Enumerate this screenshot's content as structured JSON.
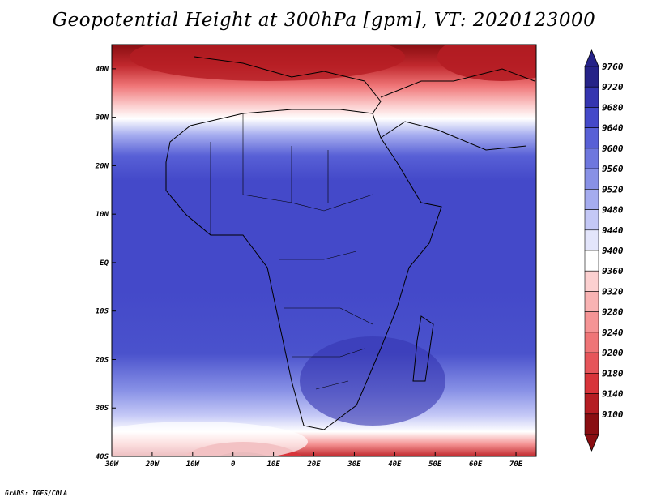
{
  "title": "Geopotential Height at 300hPa [gpm], VT: 2020123000",
  "credit": "GrADS: IGES/COLA",
  "map": {
    "lon_ticks": [
      "30W",
      "20W",
      "10W",
      "0",
      "10E",
      "20E",
      "30E",
      "40E",
      "50E",
      "60E",
      "70E"
    ],
    "lat_ticks": [
      "40N",
      "30N",
      "20N",
      "10N",
      "EQ",
      "10S",
      "20S",
      "30S",
      "40S"
    ],
    "lon_range": [
      -30,
      75
    ],
    "lat_range": [
      -40,
      45
    ]
  },
  "colorbar": {
    "levels": [
      "9760",
      "9720",
      "9680",
      "9640",
      "9600",
      "9560",
      "9520",
      "9480",
      "9440",
      "9400",
      "9360",
      "9320",
      "9280",
      "9240",
      "9200",
      "9180",
      "9140",
      "9100"
    ],
    "colors": [
      "#8a0e12",
      "#b51d23",
      "#d8343a",
      "#e6555a",
      "#ef7577",
      "#f59495",
      "#f9b3b3",
      "#fcd0d0",
      "#ffffff",
      "#e3e5fb",
      "#c4c8f6",
      "#a5acef",
      "#8891e6",
      "#6e77de",
      "#5860d6",
      "#4449c9",
      "#3535b0",
      "#262388"
    ]
  }
}
